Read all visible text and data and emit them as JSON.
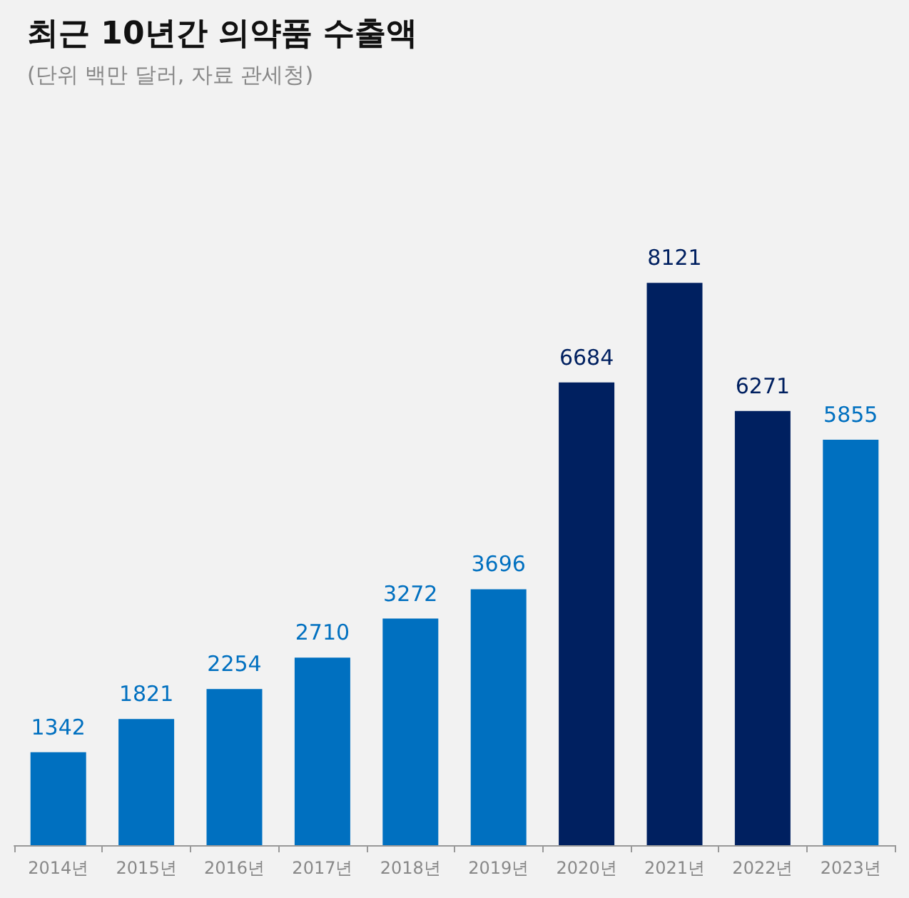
{
  "chart_data": {
    "type": "bar",
    "title": "최근 10년간 의약품 수출액",
    "subtitle": "(단위 백만 달러, 자료 관세청)",
    "categories": [
      "2014년",
      "2015년",
      "2016년",
      "2017년",
      "2018년",
      "2019년",
      "2020년",
      "2021년",
      "2022년",
      "2023년"
    ],
    "values": [
      1342,
      1821,
      2254,
      2710,
      3272,
      3696,
      6684,
      8121,
      6271,
      5855
    ],
    "colors": [
      "#0070c0",
      "#0070c0",
      "#0070c0",
      "#0070c0",
      "#0070c0",
      "#0070c0",
      "#002060",
      "#002060",
      "#002060",
      "#0070c0"
    ],
    "data_labels": true
  }
}
